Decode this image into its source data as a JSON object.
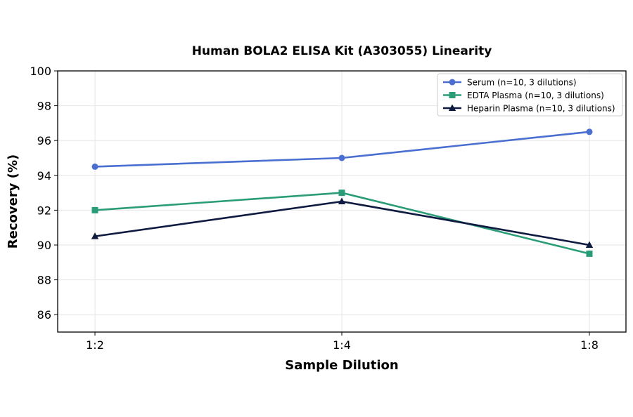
{
  "chart_data": {
    "type": "line",
    "title": "Human BOLA2 ELISA Kit (A303055) Linearity",
    "xlabel": "Sample Dilution",
    "ylabel": "Recovery (%)",
    "categories": [
      "1:2",
      "1:4",
      "1:8"
    ],
    "ylim": [
      85,
      100
    ],
    "yticks": [
      86,
      88,
      90,
      92,
      94,
      96,
      98,
      100
    ],
    "grid": true,
    "legend_position": "top-right",
    "series": [
      {
        "name": "Serum (n=10, 3 dilutions)",
        "values": [
          94.5,
          95.0,
          96.5
        ],
        "color": "#4a6fd1",
        "marker": "circle"
      },
      {
        "name": "EDTA Plasma (n=10, 3 dilutions)",
        "values": [
          92.0,
          93.0,
          89.5
        ],
        "color": "#2a9d78",
        "marker": "square"
      },
      {
        "name": "Heparin Plasma (n=10, 3 dilutions)",
        "values": [
          90.5,
          92.5,
          90.0
        ],
        "color": "#0e1a40",
        "marker": "triangle"
      }
    ]
  }
}
